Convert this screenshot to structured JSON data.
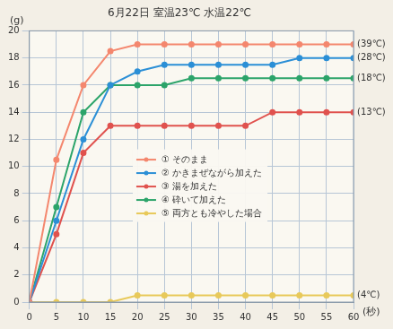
{
  "chart_data": {
    "type": "line",
    "title": "6月22日 室温23℃ 水温22℃",
    "x_label": "(秒)",
    "y_label": "(g)",
    "x": [
      0,
      5,
      10,
      15,
      20,
      25,
      30,
      35,
      40,
      45,
      50,
      55,
      60
    ],
    "xlim": [
      0,
      60
    ],
    "xticks": [
      0,
      5,
      10,
      15,
      20,
      25,
      30,
      35,
      40,
      45,
      50,
      55,
      60
    ],
    "ylim": [
      0,
      20
    ],
    "yticks": [
      0,
      2,
      4,
      6,
      8,
      10,
      12,
      14,
      16,
      18,
      20
    ],
    "grid": true,
    "legend": "right",
    "marker": "circle",
    "series": [
      {
        "name": "① そのまま",
        "color": "#f4876e",
        "end_label": "(39℃)",
        "values": [
          0,
          10.5,
          16,
          18.5,
          19,
          19,
          19,
          19,
          19,
          19,
          19,
          19,
          19
        ]
      },
      {
        "name": "② かきまぜながら加えた",
        "color": "#2b8fd6",
        "end_label": "(28℃)",
        "values": [
          0,
          6,
          12,
          16,
          17,
          17.5,
          17.5,
          17.5,
          17.5,
          17.5,
          18,
          18,
          18
        ]
      },
      {
        "name": "③ 湯を加えた",
        "color": "#e0524e",
        "end_label": "(13℃)",
        "values": [
          0,
          5,
          11,
          13,
          13,
          13,
          13,
          13,
          13,
          14,
          14,
          14,
          14
        ]
      },
      {
        "name": "④ 砕いて加えた",
        "color": "#2ca46a",
        "end_label": "(18℃)",
        "values": [
          0,
          7,
          14,
          16,
          16,
          16,
          16.5,
          16.5,
          16.5,
          16.5,
          16.5,
          16.5,
          16.5
        ]
      },
      {
        "name": "⑤ 両方とも冷やした場合",
        "color": "#e8c95a",
        "end_label": "(4℃)",
        "values": [
          0,
          0,
          0,
          0,
          0.5,
          0.5,
          0.5,
          0.5,
          0.5,
          0.5,
          0.5,
          0.5,
          0.5
        ]
      }
    ]
  }
}
